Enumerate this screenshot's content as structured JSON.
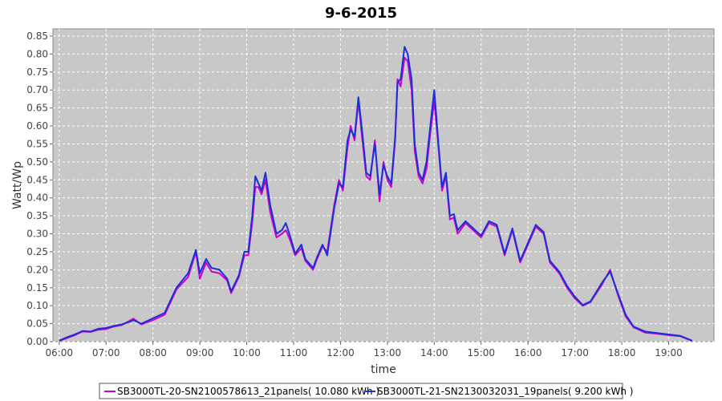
{
  "chart_data": {
    "type": "line",
    "title": "9-6-2015",
    "xlabel": "time",
    "ylabel": "Watt/Wp",
    "xlim": [
      "05:52",
      "19:58"
    ],
    "ylim": [
      0,
      0.87
    ],
    "x_ticks": [
      "06:00",
      "07:00",
      "08:00",
      "09:00",
      "10:00",
      "11:00",
      "12:00",
      "13:00",
      "14:00",
      "15:00",
      "16:00",
      "17:00",
      "18:00",
      "19:00"
    ],
    "y_ticks": [
      "0.00",
      "0.05",
      "0.10",
      "0.15",
      "0.20",
      "0.25",
      "0.30",
      "0.35",
      "0.40",
      "0.45",
      "0.50",
      "0.55",
      "0.60",
      "0.65",
      "0.70",
      "0.75",
      "0.80",
      "0.85"
    ],
    "grid": true,
    "legend_position": "bottom",
    "plot_background": "#c8c8c8",
    "series": [
      {
        "name": "SB3000TL-20-SN2100578613_21panels( 10.080 kWh )",
        "color": "#cc00cc",
        "points": [
          [
            "06:00",
            0.002
          ],
          [
            "06:10",
            0.01
          ],
          [
            "06:20",
            0.018
          ],
          [
            "06:30",
            0.028
          ],
          [
            "06:40",
            0.027
          ],
          [
            "06:50",
            0.033
          ],
          [
            "07:00",
            0.035
          ],
          [
            "07:10",
            0.042
          ],
          [
            "07:20",
            0.046
          ],
          [
            "07:30",
            0.058
          ],
          [
            "07:35",
            0.064
          ],
          [
            "07:45",
            0.048
          ],
          [
            "08:00",
            0.06
          ],
          [
            "08:15",
            0.075
          ],
          [
            "08:30",
            0.145
          ],
          [
            "08:45",
            0.18
          ],
          [
            "08:55",
            0.25
          ],
          [
            "09:00",
            0.175
          ],
          [
            "09:08",
            0.22
          ],
          [
            "09:15",
            0.195
          ],
          [
            "09:25",
            0.19
          ],
          [
            "09:35",
            0.17
          ],
          [
            "09:40",
            0.135
          ],
          [
            "09:50",
            0.18
          ],
          [
            "09:57",
            0.24
          ],
          [
            "10:02",
            0.24
          ],
          [
            "10:07",
            0.33
          ],
          [
            "10:11",
            0.43
          ],
          [
            "10:15",
            0.43
          ],
          [
            "10:19",
            0.41
          ],
          [
            "10:24",
            0.45
          ],
          [
            "10:30",
            0.36
          ],
          [
            "10:38",
            0.29
          ],
          [
            "10:45",
            0.3
          ],
          [
            "10:50",
            0.31
          ],
          [
            "10:56",
            0.28
          ],
          [
            "11:02",
            0.24
          ],
          [
            "11:10",
            0.26
          ],
          [
            "11:15",
            0.225
          ],
          [
            "11:25",
            0.2
          ],
          [
            "11:30",
            0.23
          ],
          [
            "11:37",
            0.265
          ],
          [
            "11:43",
            0.25
          ],
          [
            "11:52",
            0.38
          ],
          [
            "11:58",
            0.45
          ],
          [
            "12:03",
            0.42
          ],
          [
            "12:09",
            0.54
          ],
          [
            "12:13",
            0.6
          ],
          [
            "12:18",
            0.56
          ],
          [
            "12:23",
            0.67
          ],
          [
            "12:28",
            0.56
          ],
          [
            "12:33",
            0.46
          ],
          [
            "12:38",
            0.45
          ],
          [
            "12:44",
            0.56
          ],
          [
            "12:50",
            0.39
          ],
          [
            "12:55",
            0.5
          ],
          [
            "13:00",
            0.45
          ],
          [
            "13:05",
            0.43
          ],
          [
            "13:10",
            0.56
          ],
          [
            "13:13",
            0.73
          ],
          [
            "13:17",
            0.71
          ],
          [
            "13:22",
            0.79
          ],
          [
            "13:26",
            0.78
          ],
          [
            "13:31",
            0.7
          ],
          [
            "13:35",
            0.53
          ],
          [
            "13:40",
            0.46
          ],
          [
            "13:45",
            0.44
          ],
          [
            "13:50",
            0.48
          ],
          [
            "13:55",
            0.58
          ],
          [
            "14:00",
            0.67
          ],
          [
            "14:05",
            0.55
          ],
          [
            "14:10",
            0.42
          ],
          [
            "14:15",
            0.46
          ],
          [
            "14:20",
            0.34
          ],
          [
            "14:25",
            0.345
          ],
          [
            "14:30",
            0.3
          ],
          [
            "14:40",
            0.33
          ],
          [
            "14:50",
            0.31
          ],
          [
            "15:00",
            0.29
          ],
          [
            "15:10",
            0.33
          ],
          [
            "15:20",
            0.32
          ],
          [
            "15:30",
            0.24
          ],
          [
            "15:40",
            0.31
          ],
          [
            "15:50",
            0.22
          ],
          [
            "16:00",
            0.27
          ],
          [
            "16:10",
            0.32
          ],
          [
            "16:20",
            0.3
          ],
          [
            "16:28",
            0.22
          ],
          [
            "16:40",
            0.19
          ],
          [
            "16:50",
            0.15
          ],
          [
            "17:00",
            0.12
          ],
          [
            "17:10",
            0.1
          ],
          [
            "17:20",
            0.11
          ],
          [
            "17:35",
            0.16
          ],
          [
            "17:45",
            0.2
          ],
          [
            "17:55",
            0.13
          ],
          [
            "18:05",
            0.07
          ],
          [
            "18:15",
            0.04
          ],
          [
            "18:30",
            0.025
          ],
          [
            "18:45",
            0.022
          ],
          [
            "19:00",
            0.018
          ],
          [
            "19:15",
            0.015
          ],
          [
            "19:30",
            0.002
          ]
        ]
      },
      {
        "name": "SB3000TL-21-SN2130032031_19panels( 9.200 kWh )",
        "color": "#1a2fd8",
        "points": [
          [
            "06:00",
            0.003
          ],
          [
            "06:10",
            0.012
          ],
          [
            "06:20",
            0.02
          ],
          [
            "06:30",
            0.03
          ],
          [
            "06:40",
            0.028
          ],
          [
            "06:50",
            0.036
          ],
          [
            "07:00",
            0.038
          ],
          [
            "07:10",
            0.044
          ],
          [
            "07:20",
            0.048
          ],
          [
            "07:30",
            0.055
          ],
          [
            "07:35",
            0.06
          ],
          [
            "07:45",
            0.05
          ],
          [
            "08:00",
            0.065
          ],
          [
            "08:15",
            0.08
          ],
          [
            "08:30",
            0.15
          ],
          [
            "08:45",
            0.19
          ],
          [
            "08:55",
            0.255
          ],
          [
            "09:00",
            0.19
          ],
          [
            "09:08",
            0.23
          ],
          [
            "09:15",
            0.205
          ],
          [
            "09:25",
            0.2
          ],
          [
            "09:35",
            0.175
          ],
          [
            "09:40",
            0.14
          ],
          [
            "09:50",
            0.185
          ],
          [
            "09:57",
            0.25
          ],
          [
            "10:02",
            0.25
          ],
          [
            "10:07",
            0.35
          ],
          [
            "10:11",
            0.46
          ],
          [
            "10:15",
            0.44
          ],
          [
            "10:19",
            0.42
          ],
          [
            "10:24",
            0.47
          ],
          [
            "10:30",
            0.38
          ],
          [
            "10:38",
            0.3
          ],
          [
            "10:45",
            0.31
          ],
          [
            "10:50",
            0.33
          ],
          [
            "10:56",
            0.29
          ],
          [
            "11:02",
            0.245
          ],
          [
            "11:10",
            0.27
          ],
          [
            "11:15",
            0.23
          ],
          [
            "11:25",
            0.205
          ],
          [
            "11:30",
            0.235
          ],
          [
            "11:37",
            0.27
          ],
          [
            "11:43",
            0.24
          ],
          [
            "11:52",
            0.37
          ],
          [
            "11:58",
            0.44
          ],
          [
            "12:03",
            0.43
          ],
          [
            "12:09",
            0.56
          ],
          [
            "12:13",
            0.59
          ],
          [
            "12:18",
            0.57
          ],
          [
            "12:23",
            0.68
          ],
          [
            "12:28",
            0.58
          ],
          [
            "12:33",
            0.47
          ],
          [
            "12:38",
            0.46
          ],
          [
            "12:44",
            0.55
          ],
          [
            "12:50",
            0.41
          ],
          [
            "12:55",
            0.49
          ],
          [
            "13:00",
            0.46
          ],
          [
            "13:05",
            0.44
          ],
          [
            "13:10",
            0.57
          ],
          [
            "13:13",
            0.72
          ],
          [
            "13:17",
            0.73
          ],
          [
            "13:22",
            0.82
          ],
          [
            "13:26",
            0.8
          ],
          [
            "13:31",
            0.73
          ],
          [
            "13:35",
            0.55
          ],
          [
            "13:40",
            0.47
          ],
          [
            "13:45",
            0.45
          ],
          [
            "13:50",
            0.5
          ],
          [
            "13:55",
            0.6
          ],
          [
            "14:00",
            0.7
          ],
          [
            "14:05",
            0.56
          ],
          [
            "14:10",
            0.43
          ],
          [
            "14:15",
            0.47
          ],
          [
            "14:20",
            0.35
          ],
          [
            "14:25",
            0.355
          ],
          [
            "14:30",
            0.31
          ],
          [
            "14:40",
            0.335
          ],
          [
            "14:50",
            0.315
          ],
          [
            "15:00",
            0.295
          ],
          [
            "15:10",
            0.335
          ],
          [
            "15:20",
            0.325
          ],
          [
            "15:30",
            0.245
          ],
          [
            "15:40",
            0.315
          ],
          [
            "15:50",
            0.225
          ],
          [
            "16:00",
            0.275
          ],
          [
            "16:10",
            0.325
          ],
          [
            "16:20",
            0.305
          ],
          [
            "16:28",
            0.225
          ],
          [
            "16:40",
            0.195
          ],
          [
            "16:50",
            0.155
          ],
          [
            "17:00",
            0.125
          ],
          [
            "17:10",
            0.102
          ],
          [
            "17:20",
            0.112
          ],
          [
            "17:35",
            0.165
          ],
          [
            "17:45",
            0.195
          ],
          [
            "17:55",
            0.135
          ],
          [
            "18:05",
            0.075
          ],
          [
            "18:15",
            0.042
          ],
          [
            "18:30",
            0.028
          ],
          [
            "18:45",
            0.024
          ],
          [
            "19:00",
            0.02
          ],
          [
            "19:15",
            0.016
          ],
          [
            "19:30",
            0.003
          ]
        ]
      }
    ]
  }
}
